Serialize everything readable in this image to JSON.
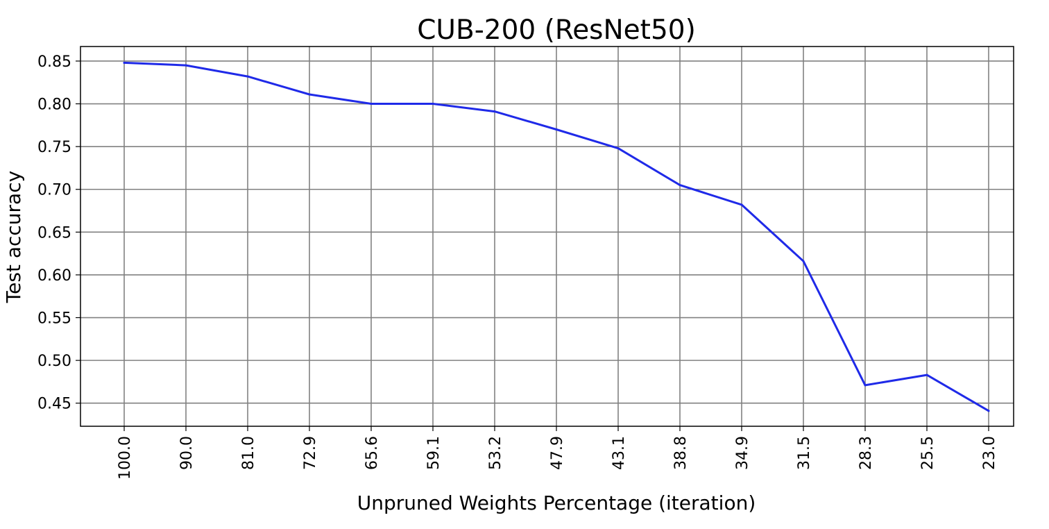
{
  "chart_data": {
    "type": "line",
    "title": "CUB-200 (ResNet50)",
    "xlabel": "Unpruned Weights Percentage (iteration)",
    "ylabel": "Test accuracy",
    "categories": [
      "100.0",
      "90.0",
      "81.0",
      "72.9",
      "65.6",
      "59.1",
      "53.2",
      "47.9",
      "43.1",
      "38.8",
      "34.9",
      "31.5",
      "28.3",
      "25.5",
      "23.0"
    ],
    "series": [
      {
        "name": "Test accuracy",
        "color": "#1f2ae8",
        "values": [
          0.848,
          0.845,
          0.832,
          0.811,
          0.8,
          0.8,
          0.791,
          0.77,
          0.748,
          0.705,
          0.682,
          0.616,
          0.471,
          0.483,
          0.441
        ]
      }
    ],
    "yticks": [
      "0.45",
      "0.50",
      "0.55",
      "0.60",
      "0.65",
      "0.70",
      "0.75",
      "0.80",
      "0.85"
    ],
    "ylim": [
      0.423,
      0.867
    ],
    "grid": true
  }
}
